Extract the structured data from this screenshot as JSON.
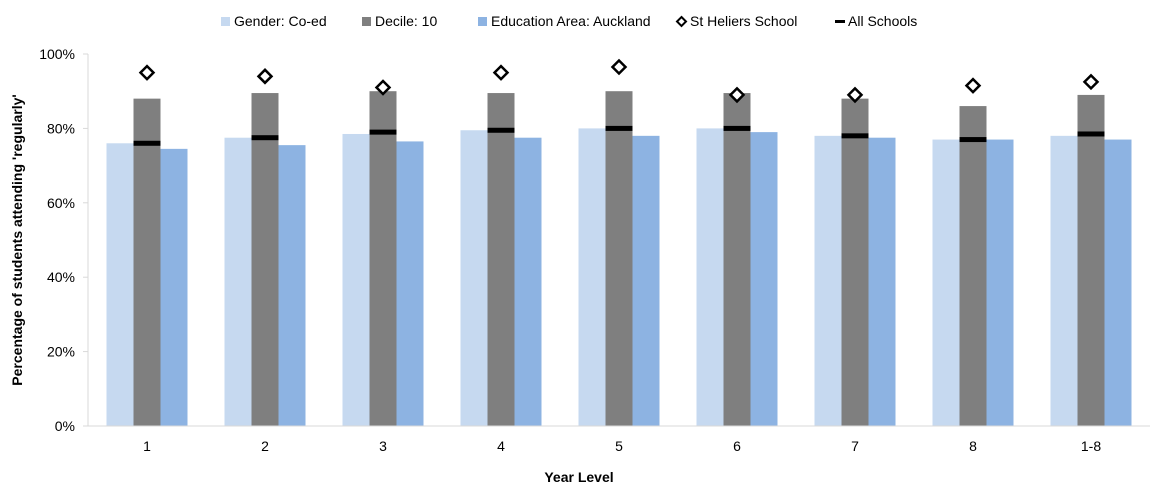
{
  "chart_data": {
    "type": "bar",
    "title": "",
    "xlabel": "Year Level",
    "ylabel": "Percentage of students attending 'regularly'",
    "categories": [
      "1",
      "2",
      "3",
      "4",
      "5",
      "6",
      "7",
      "8",
      "1-8"
    ],
    "ylim": [
      0,
      100
    ],
    "yticks": [
      0,
      20,
      40,
      60,
      80,
      100
    ],
    "ytick_labels": [
      "0%",
      "20%",
      "40%",
      "60%",
      "80%",
      "100%"
    ],
    "grid": false,
    "legend_position": "top",
    "series": [
      {
        "name": "Gender: Co-ed",
        "kind": "bar",
        "color": "#c6d9f0",
        "values": [
          76,
          77.5,
          78.5,
          79.5,
          80,
          80,
          78,
          77,
          78
        ]
      },
      {
        "name": "Decile: 10",
        "kind": "bar",
        "color": "#7f7f7f",
        "values": [
          88,
          89.5,
          90,
          89.5,
          90,
          89.5,
          88,
          86,
          89
        ]
      },
      {
        "name": "Education Area: Auckland",
        "kind": "bar",
        "color": "#8db3e2",
        "values": [
          74.5,
          75.5,
          76.5,
          77.5,
          78,
          79,
          77.5,
          77,
          77
        ]
      },
      {
        "name": "St Heliers School",
        "kind": "marker",
        "marker": "diamond-open",
        "color": "#000000",
        "values": [
          95,
          94,
          91,
          95,
          96.5,
          89,
          89,
          91.5,
          92.5
        ]
      },
      {
        "name": "All Schools",
        "kind": "dash",
        "color": "#000000",
        "values": [
          76,
          77.5,
          79,
          79.5,
          80,
          80,
          78,
          77,
          78.5
        ]
      }
    ]
  }
}
